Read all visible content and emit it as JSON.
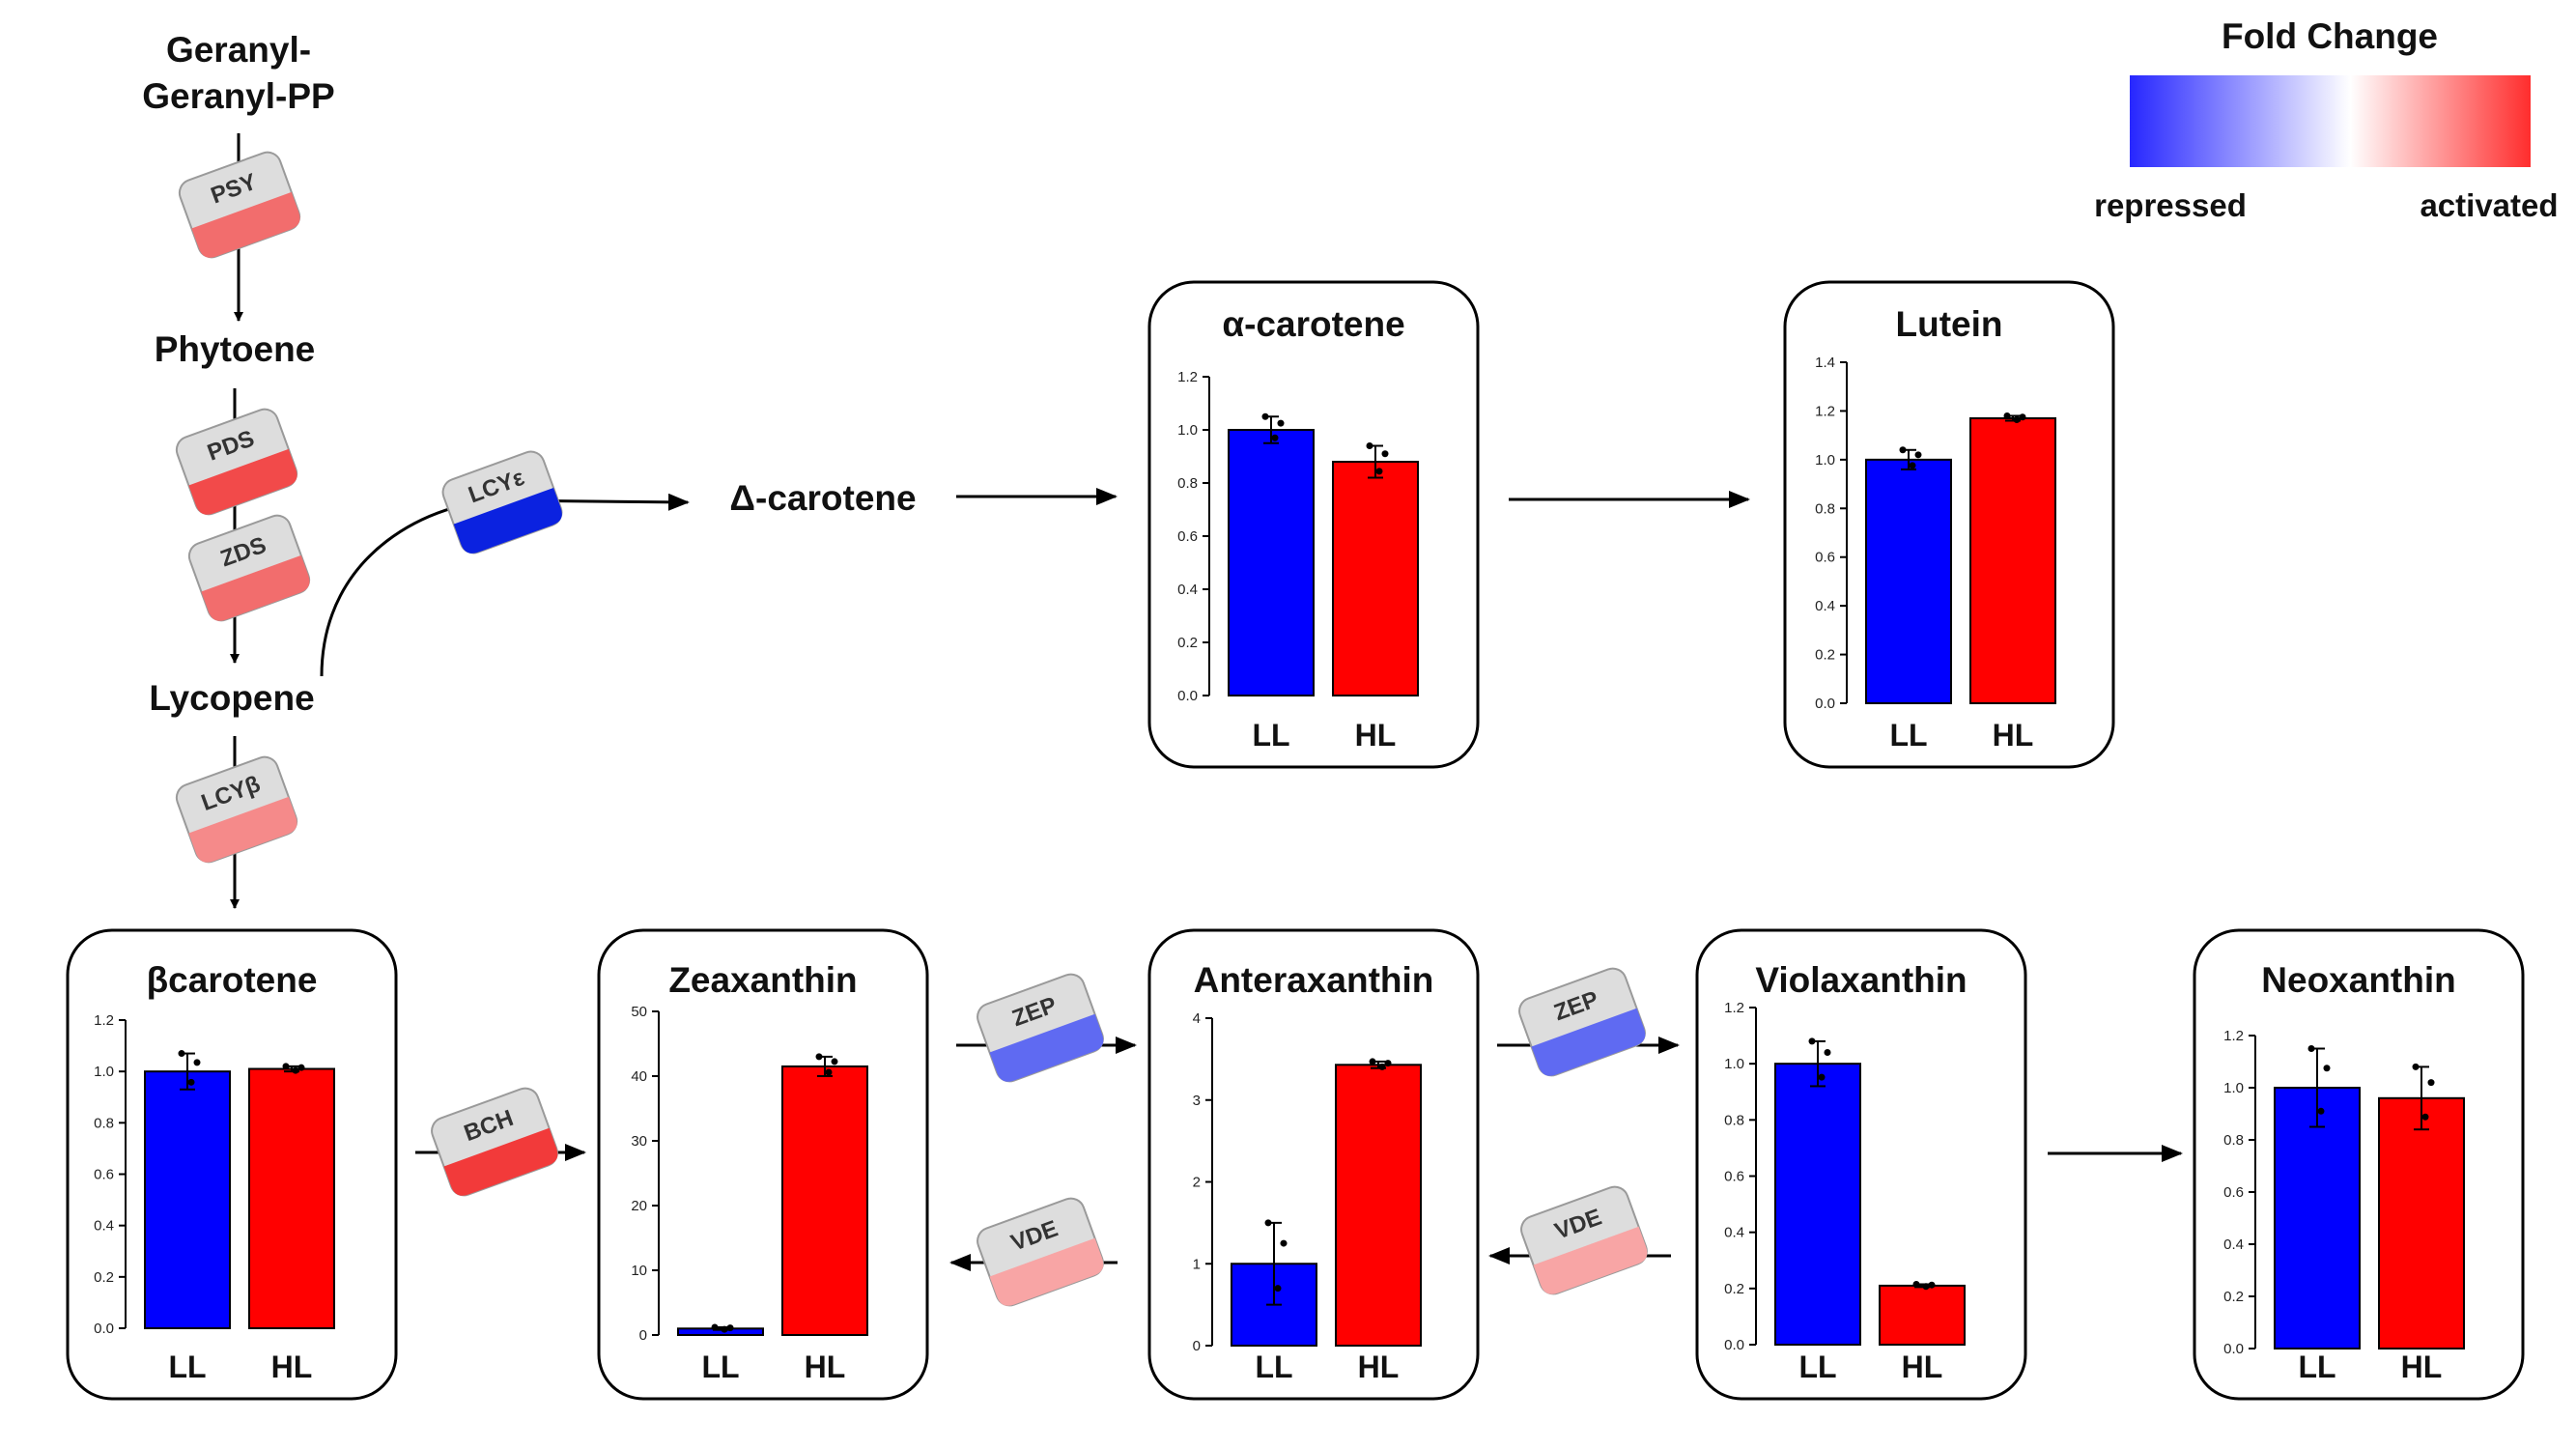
{
  "legend": {
    "title": "Fold Change",
    "low_label": "repressed",
    "high_label": "activated",
    "colors": [
      "#2727ff",
      "#ffffff",
      "#ff2d2d"
    ]
  },
  "metabolites": {
    "ggpp_line1": "Geranyl-",
    "ggpp_line2": "Geranyl-PP",
    "phytoene": "Phytoene",
    "lycopene": "Lycopene",
    "delta_carotene": "Δ-carotene"
  },
  "enzymes": [
    {
      "label": "PSY",
      "color": "#f26d6d"
    },
    {
      "label": "PDS",
      "color": "#f24a4a"
    },
    {
      "label": "ZDS",
      "color": "#f26d6d"
    },
    {
      "label": "LCYε",
      "color": "#0b22e0"
    },
    {
      "label": "LCYβ",
      "color": "#f58a8a"
    },
    {
      "label": "BCH",
      "color": "#f23a3a"
    },
    {
      "label": "ZEP",
      "color": "#5f6af2"
    },
    {
      "label": "ZEP",
      "color": "#5f6af2"
    },
    {
      "label": "VDE",
      "color": "#f8a5a5"
    },
    {
      "label": "VDE",
      "color": "#f8a5a5"
    }
  ],
  "chart_data": [
    {
      "type": "bar",
      "title": "α-carotene",
      "categories": [
        "LL",
        "HL"
      ],
      "values": [
        1.0,
        0.88
      ],
      "errors": [
        0.05,
        0.06
      ],
      "ylim": [
        0,
        1.2
      ],
      "yticks": [
        "0.0",
        "0.2",
        "0.4",
        "0.6",
        "0.8",
        "1.0",
        "1.2"
      ],
      "colors": [
        "#0000ff",
        "#ff0000"
      ]
    },
    {
      "type": "bar",
      "title": "Lutein",
      "categories": [
        "LL",
        "HL"
      ],
      "values": [
        1.0,
        1.17
      ],
      "errors": [
        0.04,
        0.01
      ],
      "ylim": [
        0,
        1.4
      ],
      "yticks": [
        "0.0",
        "0.2",
        "0.4",
        "0.6",
        "0.8",
        "1.0",
        "1.2",
        "1.4"
      ],
      "colors": [
        "#0000ff",
        "#ff0000"
      ]
    },
    {
      "type": "bar",
      "title": "βcarotene",
      "categories": [
        "LL",
        "HL"
      ],
      "values": [
        1.0,
        1.01
      ],
      "errors": [
        0.07,
        0.01
      ],
      "ylim": [
        0,
        1.2
      ],
      "yticks": [
        "0.0",
        "0.2",
        "0.4",
        "0.6",
        "0.8",
        "1.0",
        "1.2"
      ],
      "colors": [
        "#0000ff",
        "#ff0000"
      ]
    },
    {
      "type": "bar",
      "title": "Zeaxanthin",
      "categories": [
        "LL",
        "HL"
      ],
      "values": [
        1.0,
        41.5
      ],
      "errors": [
        0.2,
        1.5
      ],
      "ylim": [
        0,
        50
      ],
      "yticks": [
        "0",
        "10",
        "20",
        "30",
        "40",
        "50"
      ],
      "colors": [
        "#0000ff",
        "#ff0000"
      ]
    },
    {
      "type": "bar",
      "title": "Anteraxanthin",
      "categories": [
        "LL",
        "HL"
      ],
      "values": [
        1.0,
        3.43
      ],
      "errors": [
        0.5,
        0.04
      ],
      "ylim": [
        0,
        4
      ],
      "yticks": [
        "0",
        "1",
        "2",
        "3",
        "4"
      ],
      "colors": [
        "#0000ff",
        "#ff0000"
      ]
    },
    {
      "type": "bar",
      "title": "Violaxanthin",
      "categories": [
        "LL",
        "HL"
      ],
      "values": [
        1.0,
        0.21
      ],
      "errors": [
        0.08,
        0.005
      ],
      "ylim": [
        0,
        1.2
      ],
      "yticks": [
        "0.0",
        "0.2",
        "0.4",
        "0.6",
        "0.8",
        "1.0",
        "1.2"
      ],
      "colors": [
        "#0000ff",
        "#ff0000"
      ]
    },
    {
      "type": "bar",
      "title": "Neoxanthin",
      "categories": [
        "LL",
        "HL"
      ],
      "values": [
        1.0,
        0.96
      ],
      "errors": [
        0.15,
        0.12
      ],
      "ylim": [
        0,
        1.2
      ],
      "yticks": [
        "0.0",
        "0.2",
        "0.4",
        "0.6",
        "0.8",
        "1.0",
        "1.2"
      ],
      "colors": [
        "#0000ff",
        "#ff0000"
      ]
    }
  ]
}
